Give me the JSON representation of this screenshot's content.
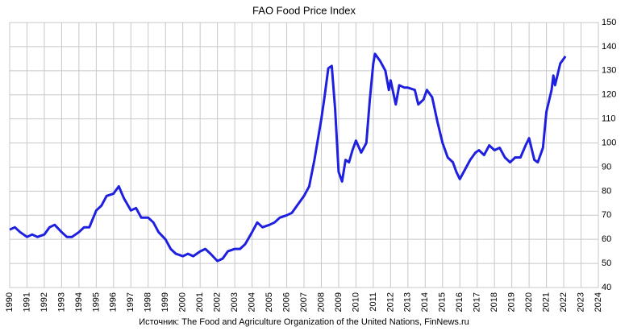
{
  "chart_data": {
    "type": "line",
    "title": "FAO Food Price Index",
    "footer": "Источник: The Food and Agriculture Organization of the United Nations, FinNews.ru",
    "x": [
      1990.0,
      1990.3,
      1990.6,
      1991.0,
      1991.3,
      1991.6,
      1992.0,
      1992.3,
      1992.6,
      1993.0,
      1993.3,
      1993.6,
      1994.0,
      1994.3,
      1994.6,
      1995.0,
      1995.3,
      1995.6,
      1996.0,
      1996.3,
      1996.6,
      1997.0,
      1997.3,
      1997.6,
      1998.0,
      1998.3,
      1998.6,
      1999.0,
      1999.3,
      1999.6,
      2000.0,
      2000.3,
      2000.6,
      2001.0,
      2001.3,
      2001.6,
      2002.0,
      2002.3,
      2002.6,
      2003.0,
      2003.3,
      2003.6,
      2004.0,
      2004.3,
      2004.6,
      2005.0,
      2005.3,
      2005.6,
      2006.0,
      2006.3,
      2006.6,
      2007.0,
      2007.3,
      2007.6,
      2008.0,
      2008.2,
      2008.4,
      2008.6,
      2008.8,
      2009.0,
      2009.2,
      2009.4,
      2009.6,
      2009.8,
      2010.0,
      2010.3,
      2010.6,
      2010.8,
      2011.0,
      2011.1,
      2011.4,
      2011.7,
      2011.9,
      2012.0,
      2012.3,
      2012.5,
      2012.8,
      2013.0,
      2013.4,
      2013.6,
      2013.9,
      2014.1,
      2014.4,
      2014.7,
      2015.0,
      2015.3,
      2015.6,
      2015.8,
      2016.0,
      2016.3,
      2016.6,
      2016.9,
      2017.1,
      2017.4,
      2017.7,
      2018.0,
      2018.3,
      2018.6,
      2018.9,
      2019.2,
      2019.5,
      2019.8,
      2020.0,
      2020.3,
      2020.5,
      2020.8,
      2021.0,
      2021.3,
      2021.4,
      2021.5,
      2021.8,
      2022.0,
      2022.1
    ],
    "series": [
      {
        "name": "FAO Food Price Index",
        "color": "#1f1fe0",
        "values": [
          64,
          65,
          63,
          61,
          62,
          61,
          62,
          65,
          66,
          63,
          61,
          61,
          63,
          65,
          65,
          72,
          74,
          78,
          79,
          82,
          77,
          72,
          73,
          69,
          69,
          67,
          63,
          60,
          56,
          54,
          53,
          54,
          53,
          55,
          56,
          54,
          51,
          52,
          55,
          56,
          56,
          58,
          63,
          67,
          65,
          66,
          67,
          69,
          70,
          71,
          74,
          78,
          82,
          93,
          110,
          120,
          131,
          132,
          114,
          88,
          84,
          93,
          92,
          97,
          101,
          96,
          100,
          118,
          133,
          137,
          134,
          130,
          122,
          126,
          116,
          124,
          123,
          123,
          122,
          116,
          118,
          122,
          119,
          109,
          100,
          94,
          92,
          88,
          85,
          89,
          93,
          96,
          97,
          95,
          99,
          97,
          98,
          94,
          92,
          94,
          94,
          99,
          102,
          93,
          92,
          98,
          113,
          122,
          128,
          124,
          133,
          135,
          136
        ]
      }
    ],
    "xlim": [
      1990,
      2024
    ],
    "xticks": [
      1990,
      1991,
      1992,
      1993,
      1994,
      1995,
      1996,
      1997,
      1998,
      1999,
      2000,
      2001,
      2002,
      2003,
      2004,
      2005,
      2006,
      2007,
      2008,
      2009,
      2010,
      2011,
      2012,
      2013,
      2014,
      2015,
      2016,
      2017,
      2018,
      2019,
      2020,
      2021,
      2022,
      2023,
      2024
    ],
    "ylim": [
      40,
      150
    ],
    "yticks": [
      40,
      50,
      60,
      70,
      80,
      90,
      100,
      110,
      120,
      130,
      140,
      150
    ],
    "grid": true
  }
}
